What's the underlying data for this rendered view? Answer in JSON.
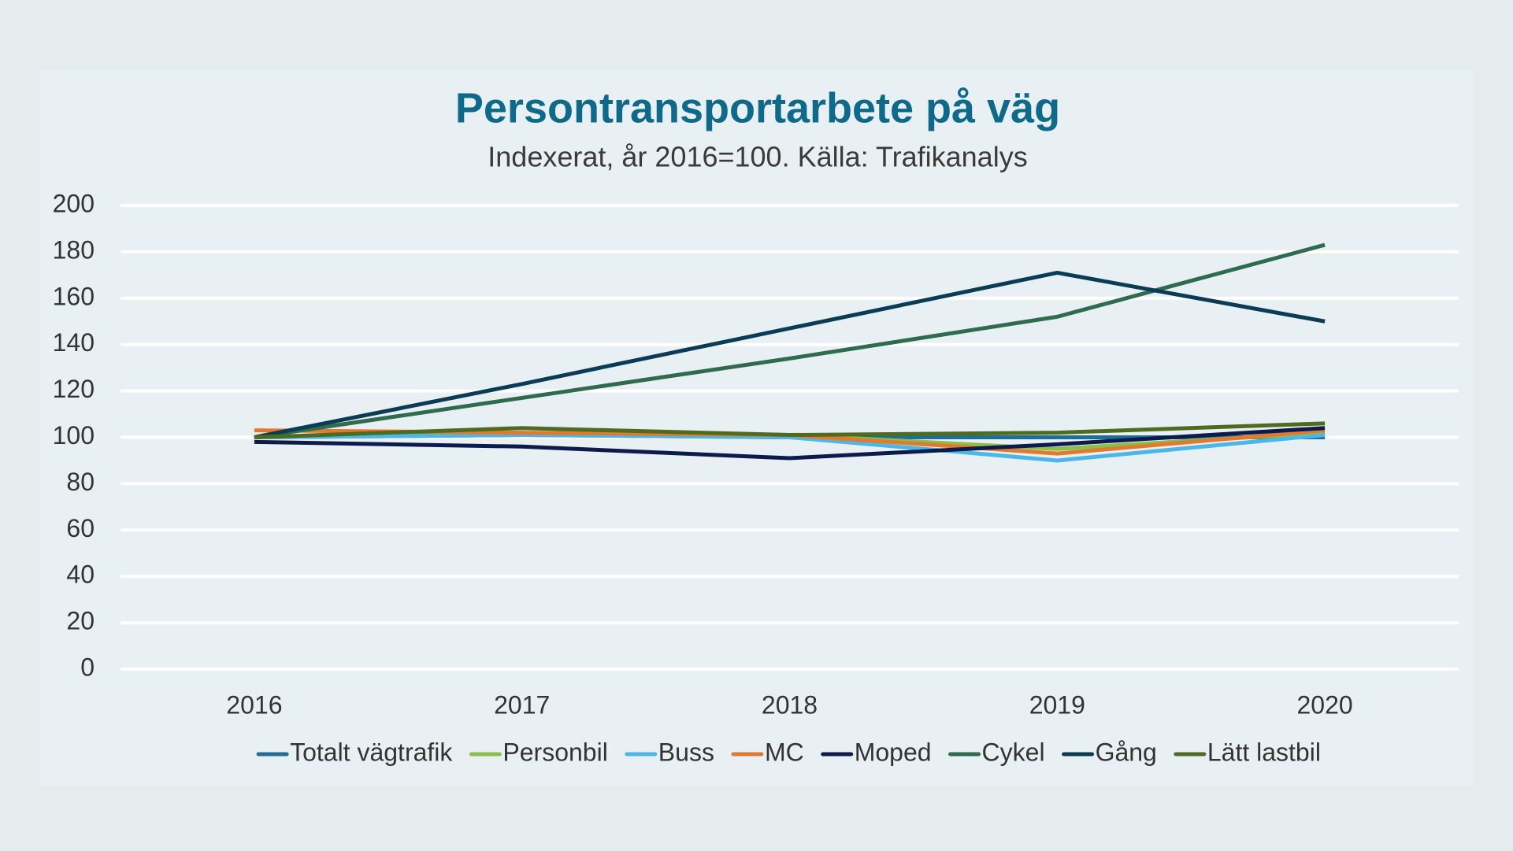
{
  "chart_data": {
    "type": "line",
    "title": "Persontransportarbete på väg",
    "subtitle": "Indexerat, år 2016=100. Källa: Trafikanalys",
    "categories": [
      "2016",
      "2017",
      "2018",
      "2019",
      "2020"
    ],
    "series": [
      {
        "name": "Totalt vägtrafik",
        "color": "#1f6e96",
        "values": [
          100,
          101,
          100,
          100,
          100
        ]
      },
      {
        "name": "Personbil",
        "color": "#8cbf4a",
        "values": [
          100,
          101,
          101,
          95,
          102
        ]
      },
      {
        "name": "Buss",
        "color": "#4ab7e8",
        "values": [
          100,
          101,
          100,
          90,
          101
        ]
      },
      {
        "name": "MC",
        "color": "#e07a2e",
        "values": [
          103,
          102,
          101,
          93,
          103
        ]
      },
      {
        "name": "Moped",
        "color": "#0d1a4d",
        "values": [
          98,
          96,
          91,
          97,
          104
        ]
      },
      {
        "name": "Cykel",
        "color": "#2e6b4f",
        "values": [
          100,
          117,
          134,
          152,
          183
        ]
      },
      {
        "name": "Gång",
        "color": "#0b3c55",
        "values": [
          100,
          123,
          147,
          171,
          150
        ]
      },
      {
        "name": "Lätt lastbil",
        "color": "#4e6b1f",
        "values": [
          100,
          104,
          101,
          102,
          106
        ]
      }
    ],
    "ylim": [
      0,
      200
    ],
    "yticks": [
      0,
      20,
      40,
      60,
      80,
      100,
      120,
      140,
      160,
      180,
      200
    ],
    "grid": true,
    "legend": "bottom"
  }
}
